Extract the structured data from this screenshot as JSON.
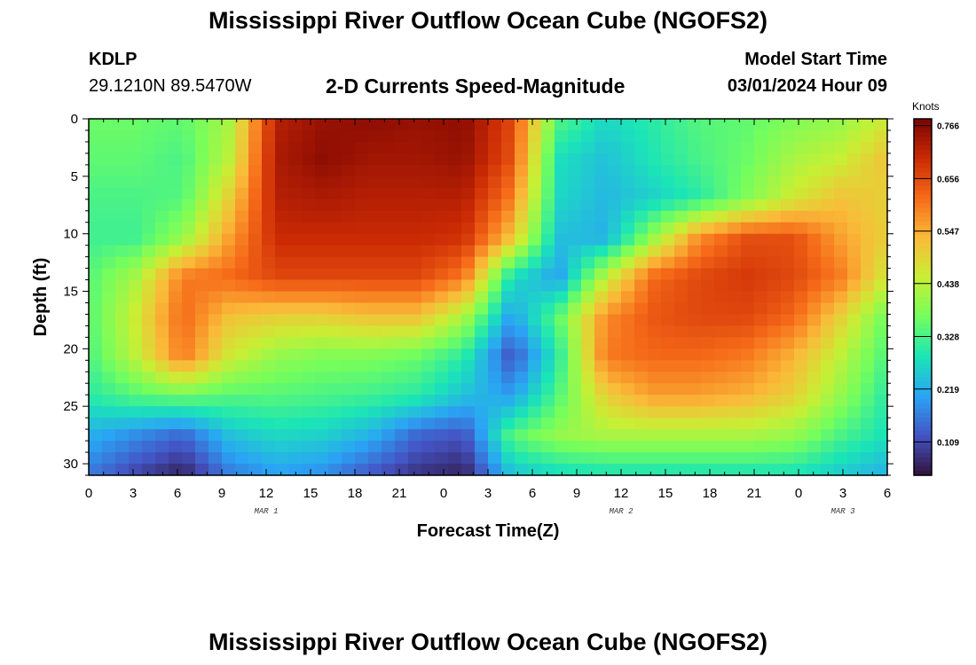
{
  "page": {
    "title": "Mississippi River Outflow Ocean Cube (NGOFS2)",
    "title_repeat": "Mississippi River Outflow Ocean Cube (NGOFS2)",
    "station": "KDLP",
    "coordinates": "29.1210N  89.5470W",
    "model_start_label": "Model Start Time",
    "model_start_value": "03/01/2024 Hour 09"
  },
  "chart_data": {
    "type": "heatmap",
    "title": "2-D Currents Speed-Magnitude",
    "xlabel": "Forecast Time(Z)",
    "ylabel": "Depth (ft)",
    "x_ticks": [
      "0",
      "3",
      "6",
      "9",
      "12",
      "15",
      "18",
      "21",
      "0",
      "3",
      "6",
      "9",
      "12",
      "15",
      "18",
      "21",
      "0",
      "3",
      "6"
    ],
    "date_labels": [
      {
        "label": "MAR 1",
        "tick_index": 4
      },
      {
        "label": "MAR 2",
        "tick_index": 12
      },
      {
        "label": "MAR 3",
        "tick_index": 17
      }
    ],
    "y_ticks": [
      0,
      5,
      10,
      15,
      20,
      25,
      30
    ],
    "ylim": [
      0,
      31
    ],
    "xlim_hours": [
      0,
      54
    ],
    "colorbar": {
      "label": "Knots",
      "ticks": [
        "0.766",
        "0.656",
        "0.547",
        "0.438",
        "0.328",
        "0.219",
        "0.109"
      ],
      "min": 0.04,
      "max": 0.78
    },
    "colors": {
      "c0": "#30123b",
      "c1": "#4454c4",
      "c2": "#2aa4f5",
      "c3": "#1be5b6",
      "c4": "#74fe5d",
      "c5": "#c8ef34",
      "c6": "#faba39",
      "c7": "#f66b19",
      "c8": "#cb2a04",
      "c9": "#7a0403"
    },
    "speed_grid_note": "",
    "speed_grid": [
      [
        0.36,
        0.36,
        0.35,
        0.42,
        0.72,
        0.75,
        0.76,
        0.75,
        0.76,
        0.66,
        0.34,
        0.27,
        0.3,
        0.34,
        0.35,
        0.38,
        0.4,
        0.46
      ],
      [
        0.35,
        0.35,
        0.33,
        0.44,
        0.73,
        0.76,
        0.74,
        0.74,
        0.75,
        0.65,
        0.28,
        0.24,
        0.29,
        0.33,
        0.36,
        0.42,
        0.45,
        0.52
      ],
      [
        0.33,
        0.33,
        0.34,
        0.5,
        0.72,
        0.73,
        0.72,
        0.72,
        0.72,
        0.6,
        0.27,
        0.23,
        0.26,
        0.3,
        0.38,
        0.46,
        0.52,
        0.5
      ],
      [
        0.32,
        0.32,
        0.4,
        0.56,
        0.7,
        0.7,
        0.7,
        0.7,
        0.69,
        0.52,
        0.24,
        0.22,
        0.4,
        0.58,
        0.65,
        0.65,
        0.56,
        0.5
      ],
      [
        0.34,
        0.42,
        0.6,
        0.62,
        0.66,
        0.66,
        0.66,
        0.66,
        0.6,
        0.28,
        0.2,
        0.44,
        0.62,
        0.66,
        0.68,
        0.66,
        0.6,
        0.46
      ],
      [
        0.34,
        0.46,
        0.62,
        0.52,
        0.5,
        0.5,
        0.52,
        0.52,
        0.42,
        0.2,
        0.35,
        0.58,
        0.64,
        0.66,
        0.66,
        0.62,
        0.5,
        0.36
      ],
      [
        0.33,
        0.44,
        0.6,
        0.46,
        0.4,
        0.38,
        0.38,
        0.36,
        0.3,
        0.12,
        0.3,
        0.6,
        0.62,
        0.62,
        0.6,
        0.54,
        0.44,
        0.33
      ],
      [
        0.3,
        0.34,
        0.36,
        0.34,
        0.34,
        0.33,
        0.32,
        0.3,
        0.24,
        0.2,
        0.34,
        0.5,
        0.56,
        0.56,
        0.54,
        0.5,
        0.4,
        0.3
      ],
      [
        0.22,
        0.18,
        0.14,
        0.24,
        0.27,
        0.26,
        0.22,
        0.14,
        0.12,
        0.34,
        0.4,
        0.42,
        0.42,
        0.42,
        0.42,
        0.4,
        0.33,
        0.28
      ],
      [
        0.16,
        0.1,
        0.06,
        0.16,
        0.2,
        0.18,
        0.12,
        0.08,
        0.06,
        0.24,
        0.27,
        0.28,
        0.28,
        0.28,
        0.28,
        0.28,
        0.25,
        0.22
      ]
    ]
  }
}
